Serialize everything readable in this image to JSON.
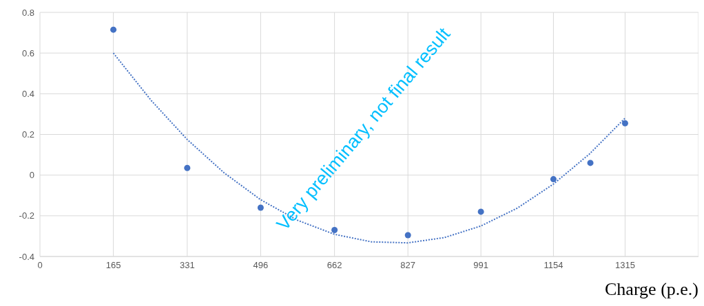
{
  "chart_data": {
    "type": "scatter",
    "xlabel": "Charge (p.e.)",
    "annotations": [
      "Very preliminary, not final result"
    ],
    "xlim": [
      0,
      1480
    ],
    "xticks": [
      0,
      165,
      331,
      496,
      662,
      827,
      991,
      1154,
      1315
    ],
    "ylim": [
      -0.4,
      0.8
    ],
    "yticks": [
      -0.4,
      -0.2,
      0,
      0.2,
      0.4,
      0.6,
      0.8
    ],
    "grid": true,
    "legend": false,
    "line_style": "dotted",
    "series": [
      {
        "marker": "circle",
        "color": "#4472c4",
        "x": [
          165,
          331,
          496,
          662,
          827,
          991,
          1154,
          1237,
          1315
        ],
        "values": [
          0.715,
          0.035,
          -0.16,
          -0.27,
          -0.295,
          -0.18,
          -0.02,
          0.06,
          0.255
        ]
      },
      {
        "type": "line",
        "marker": "none",
        "color": "#4472c4",
        "x": [
          165,
          250,
          331,
          414,
          496,
          579,
          662,
          745,
          827,
          909,
          991,
          1073,
          1154,
          1235,
          1315
        ],
        "values": [
          0.6,
          0.367,
          0.175,
          0.011,
          -0.121,
          -0.222,
          -0.291,
          -0.328,
          -0.333,
          -0.307,
          -0.25,
          -0.162,
          -0.044,
          0.104,
          0.28
        ]
      }
    ]
  }
}
